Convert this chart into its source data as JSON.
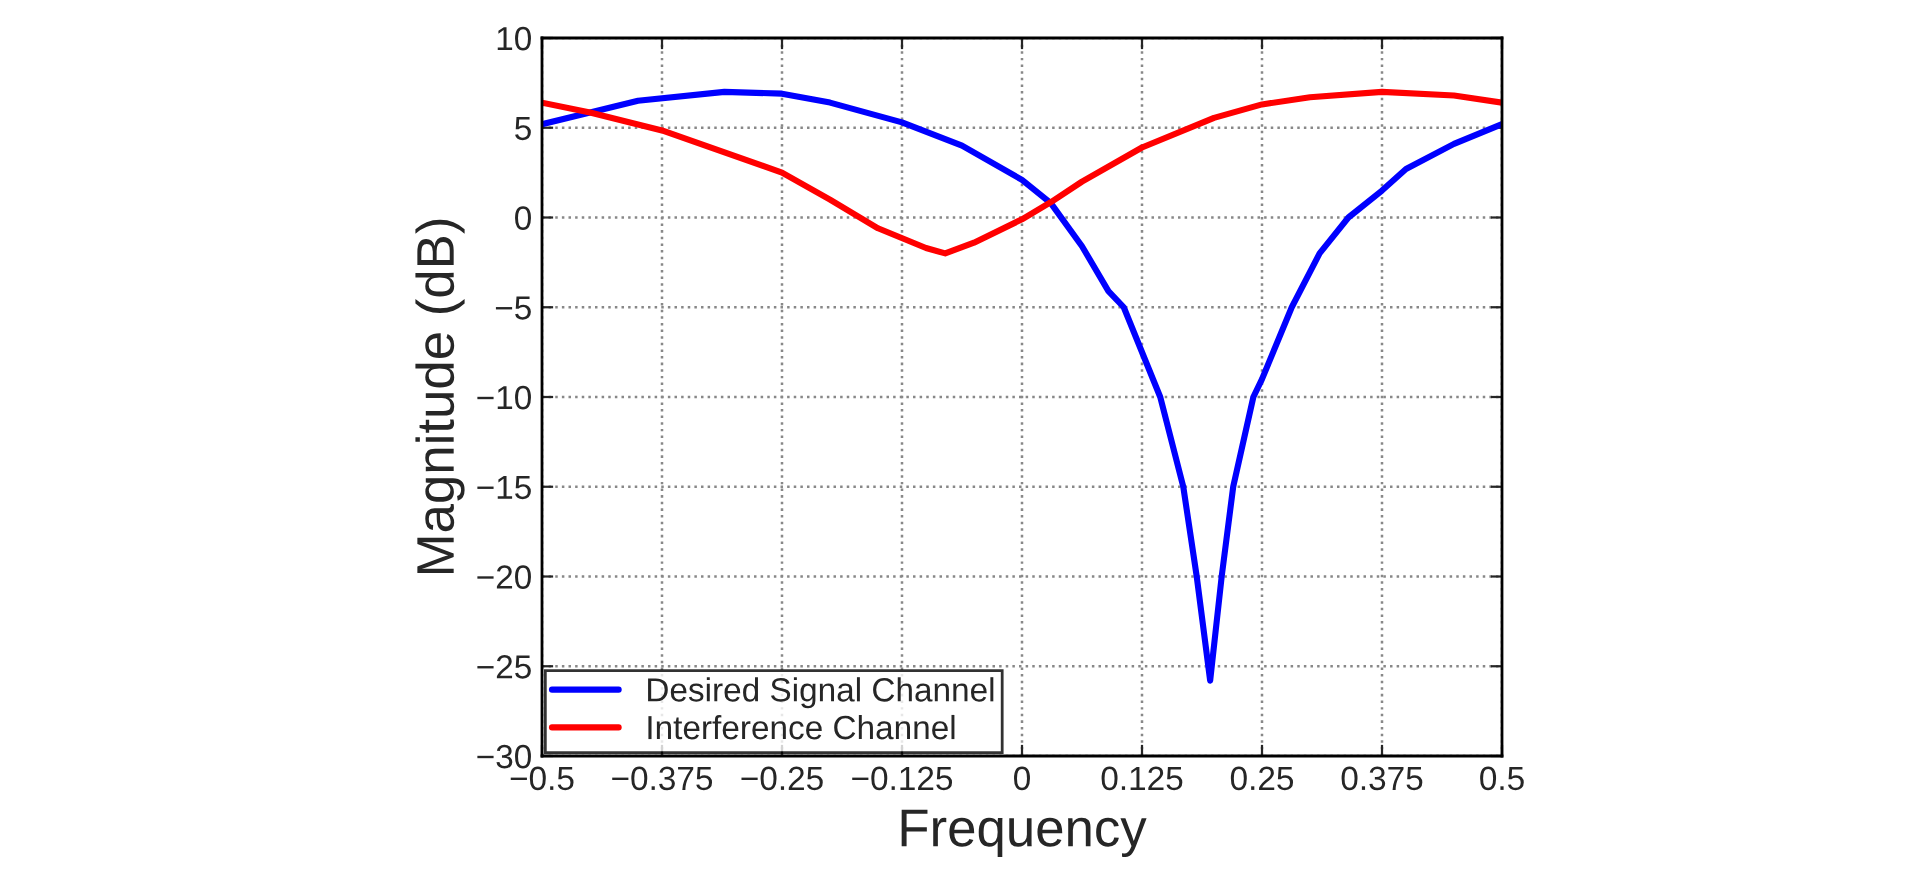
{
  "chart_data": {
    "type": "line",
    "xlabel": "Frequency",
    "ylabel": "Magnitude (dB)",
    "xlim": [
      -0.5,
      0.5
    ],
    "xticks": [
      {
        "value": -0.5,
        "label": "−0.5"
      },
      {
        "value": -0.375,
        "label": "−0.375"
      },
      {
        "value": -0.25,
        "label": "−0.25"
      },
      {
        "value": -0.125,
        "label": "−0.125"
      },
      0,
      0.125,
      0.25,
      0.375,
      0.5
    ],
    "ylim": [
      -30,
      10
    ],
    "yticks": [
      {
        "value": -30,
        "label": "−30"
      },
      {
        "value": -25,
        "label": "−25"
      },
      {
        "value": -20,
        "label": "−20"
      },
      {
        "value": -15,
        "label": "−15"
      },
      {
        "value": -10,
        "label": "−10"
      },
      {
        "value": -5,
        "label": "−5"
      },
      0,
      5,
      10
    ],
    "grid": true,
    "legend": "bottom left",
    "line_style": "solid",
    "marker": "none",
    "series": [
      {
        "name": "Desired Signal Channel",
        "color": "#0000ff",
        "x": [
          -0.5,
          -0.45,
          -0.4,
          -0.31,
          -0.25,
          -0.2,
          -0.125,
          -0.0625,
          0,
          0.03,
          0.0625,
          0.09,
          0.106,
          0.144,
          0.168,
          0.182,
          0.196,
          0.208,
          0.22,
          0.241,
          0.25,
          0.281,
          0.31,
          0.34,
          0.375,
          0.4,
          0.45,
          0.5
        ],
        "values": [
          5.2,
          5.85,
          6.5,
          7.0,
          6.9,
          6.4,
          5.3,
          4.0,
          2.1,
          0.8,
          -1.6,
          -4.1,
          -5,
          -10,
          -15,
          -20,
          -25.8,
          -20,
          -15,
          -10,
          -9,
          -5,
          -2,
          0,
          1.5,
          2.7,
          4.1,
          5.2
        ]
      },
      {
        "name": "Interference Channel",
        "color": "#ff0000",
        "x": [
          -0.5,
          -0.45,
          -0.375,
          -0.25,
          -0.2,
          -0.15,
          -0.1,
          -0.08,
          -0.05,
          0,
          0.03,
          0.0625,
          0.125,
          0.2,
          0.25,
          0.3,
          0.375,
          0.45,
          0.5
        ],
        "values": [
          6.4,
          5.85,
          4.85,
          2.5,
          1.0,
          -0.6,
          -1.7,
          -2.0,
          -1.4,
          -0.1,
          0.85,
          2.0,
          3.9,
          5.55,
          6.3,
          6.7,
          7.0,
          6.8,
          6.4
        ]
      }
    ]
  }
}
